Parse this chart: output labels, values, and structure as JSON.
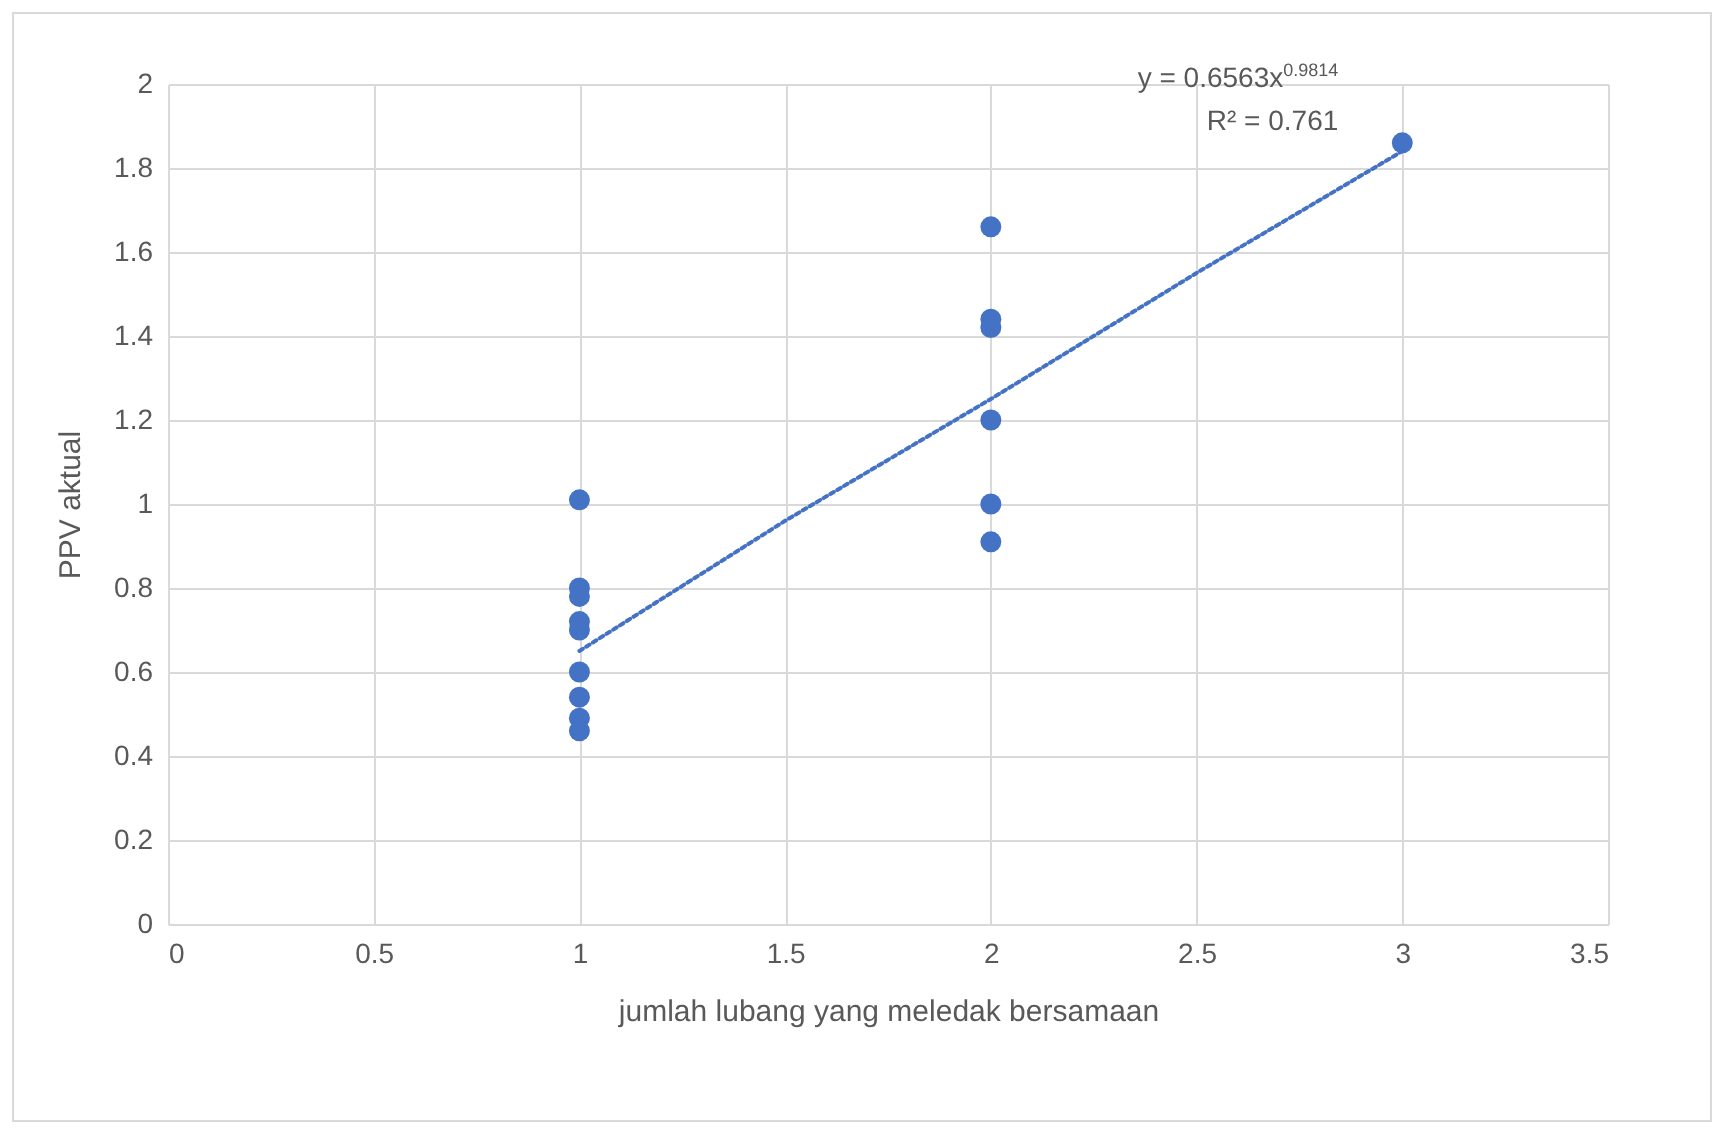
{
  "chart_data": {
    "type": "scatter",
    "xlabel": "jumlah lubang yang meledak bersamaan",
    "ylabel": "PPV aktual",
    "series": [
      {
        "color": "#4472c4",
        "marker": "circle",
        "x": [
          1,
          1,
          1,
          1,
          1,
          1,
          1,
          1,
          1,
          2,
          2,
          2,
          2,
          2,
          2,
          3
        ],
        "values": [
          1.01,
          0.8,
          0.78,
          0.72,
          0.7,
          0.6,
          0.54,
          0.49,
          0.46,
          1.66,
          1.44,
          1.42,
          1.2,
          1.0,
          0.91,
          1.86
        ]
      },
      {
        "type": "line",
        "color": "#4472c4",
        "line_style": "dotted",
        "x": [
          1,
          1.5,
          2,
          2.5,
          3
        ],
        "values": [
          0.65,
          0.96,
          1.25,
          1.55,
          1.84
        ]
      }
    ],
    "annotations": [
      "y = 0.6563x$^{0.9814}$",
      "R² = 0.761"
    ],
    "xlim": [
      0,
      3.5
    ],
    "xticks": [
      0,
      0.5,
      1,
      1.5,
      2,
      2.5,
      3,
      3.5
    ],
    "ylim": [
      0,
      2
    ],
    "yticks": [
      0,
      0.2,
      0.4,
      0.6,
      0.8,
      1,
      1.2,
      1.4,
      1.6,
      1.8,
      2
    ],
    "grid": true
  }
}
